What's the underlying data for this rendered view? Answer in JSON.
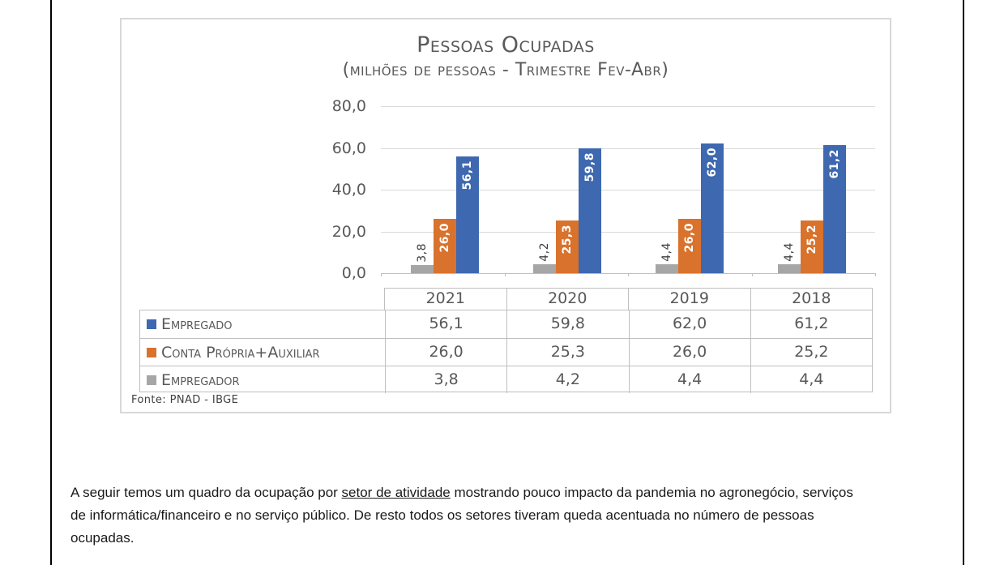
{
  "chart_data": {
    "type": "bar",
    "title": "Pessoas Ocupadas",
    "subtitle": "(milhões de pessoas - Trimestre Fev-Abr)",
    "source": "Fonte: PNAD - IBGE",
    "categories": [
      "2021",
      "2020",
      "2019",
      "2018"
    ],
    "series": [
      {
        "name": "Empregado",
        "color": "#3E68B0",
        "values": [
          56.1,
          59.8,
          62.0,
          61.2
        ],
        "labels": [
          "56,1",
          "59,8",
          "62,0",
          "61,2"
        ]
      },
      {
        "name": "Conta Própria+Auxiliar",
        "color": "#D9722C",
        "values": [
          26.0,
          25.3,
          26.0,
          25.2
        ],
        "labels": [
          "26,0",
          "25,3",
          "26,0",
          "25,2"
        ]
      },
      {
        "name": "Empregador",
        "color": "#A6A6A6",
        "values": [
          3.8,
          4.2,
          4.4,
          4.4
        ],
        "labels": [
          "3,8",
          "4,2",
          "4,4",
          "4,4"
        ]
      }
    ],
    "bar_order_in_group": [
      "Empregador",
      "Conta Própria+Auxiliar",
      "Empregado"
    ],
    "ylim": [
      0,
      80
    ],
    "yticks": [
      {
        "value": 0,
        "label": "0,0"
      },
      {
        "value": 20,
        "label": "20,0"
      },
      {
        "value": 40,
        "label": "40,0"
      },
      {
        "value": 60,
        "label": "60,0"
      },
      {
        "value": 80,
        "label": "80,0"
      }
    ],
    "grid": true,
    "legend_position": "table-left",
    "value_label_style": {
      "inside_color": "#FFFFFF",
      "outside_color": "#3F3F3F",
      "rotation": "bottom-to-top"
    }
  },
  "paragraph": {
    "line1_before": "A seguir temos um quadro da ocupação por ",
    "line1_underlined": "setor de atividade",
    "line1_after": " mostrando pouco impacto da pandemia no agronegócio, serviços",
    "line2": "de informática/financeiro e no serviço público. De resto todos os setores tiveram queda acentuada no número de pessoas",
    "line3": "ocupadas."
  }
}
